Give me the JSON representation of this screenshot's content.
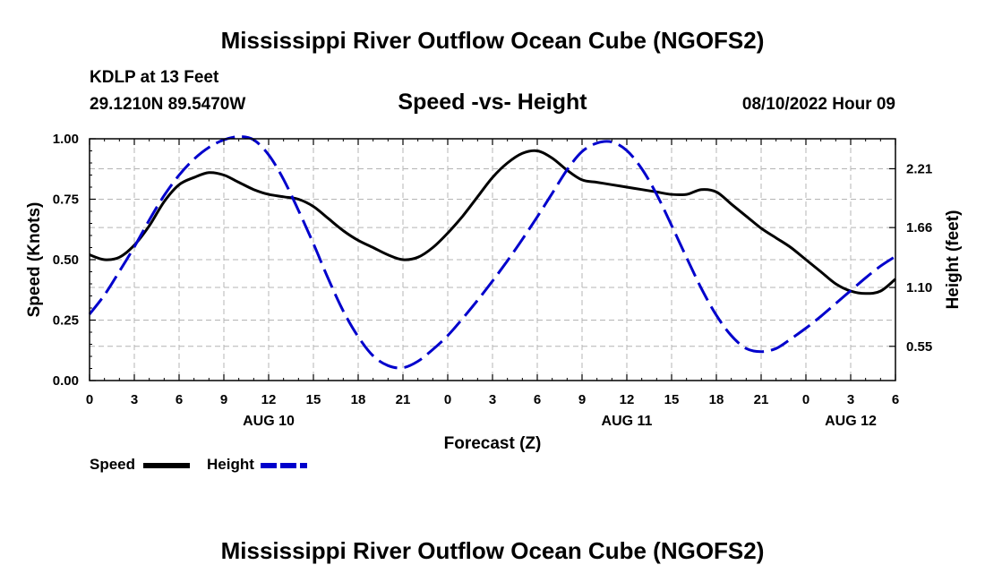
{
  "header": {
    "title": "Mississippi River Outflow Ocean Cube (NGOFS2)",
    "station": "KDLP at 13 Feet",
    "coords": "29.1210N  89.5470W",
    "subtitle": "Speed -vs- Height",
    "datetime": "08/10/2022 Hour 09"
  },
  "footer": {
    "title": "Mississippi River Outflow Ocean Cube (NGOFS2)"
  },
  "legend": {
    "speed": "Speed",
    "height": "Height"
  },
  "colors": {
    "speed": "#000000",
    "height": "#0000cc",
    "grid": "#b4b4b4"
  },
  "chart_data": {
    "type": "line",
    "title": "Speed -vs- Height",
    "xlabel": "Forecast (Z)",
    "ylabel": "Speed (Knots)",
    "y2label": "Height (feet)",
    "xlim": [
      0,
      54
    ],
    "ylim": [
      0,
      1.0
    ],
    "y2lim": [
      0.23,
      2.49
    ],
    "x_ticks": [
      0,
      3,
      6,
      9,
      12,
      15,
      18,
      21,
      24,
      27,
      30,
      33,
      36,
      39,
      42,
      45,
      48,
      51,
      54
    ],
    "x_tick_labels": [
      "0",
      "3",
      "6",
      "9",
      "12",
      "15",
      "18",
      "21",
      "0",
      "3",
      "6",
      "9",
      "12",
      "15",
      "18",
      "21",
      "0",
      "3",
      "6"
    ],
    "date_labels": [
      {
        "x": 12,
        "label": "AUG 10"
      },
      {
        "x": 36,
        "label": "AUG 11"
      },
      {
        "x": 51,
        "label": "AUG 12"
      }
    ],
    "y_ticks": [
      0,
      0.25,
      0.5,
      0.75,
      1.0
    ],
    "y_tick_labels": [
      "0.00",
      "0.25",
      "0.50",
      "0.75",
      "1.00"
    ],
    "y2_ticks": [
      0.55,
      1.1,
      1.66,
      2.21
    ],
    "y2_tick_labels": [
      "0.55",
      "1.10",
      "1.66",
      "2.21"
    ],
    "series": [
      {
        "name": "Speed",
        "axis": "left",
        "style": "solid",
        "x": [
          0,
          1,
          2,
          3,
          4,
          5,
          6,
          7,
          8,
          9,
          10,
          11,
          12,
          13,
          14,
          15,
          16,
          17,
          18,
          19,
          20,
          21,
          22,
          23,
          24,
          25,
          26,
          27,
          28,
          29,
          30,
          31,
          32,
          33,
          34,
          35,
          36,
          37,
          38,
          39,
          40,
          41,
          42,
          43,
          44,
          45,
          46,
          47,
          48,
          49,
          50,
          51,
          52,
          53,
          54
        ],
        "values": [
          0.52,
          0.5,
          0.51,
          0.56,
          0.64,
          0.74,
          0.81,
          0.84,
          0.86,
          0.85,
          0.82,
          0.79,
          0.77,
          0.76,
          0.75,
          0.72,
          0.67,
          0.62,
          0.58,
          0.55,
          0.52,
          0.5,
          0.51,
          0.55,
          0.61,
          0.68,
          0.76,
          0.84,
          0.9,
          0.94,
          0.95,
          0.92,
          0.87,
          0.83,
          0.82,
          0.81,
          0.8,
          0.79,
          0.78,
          0.77,
          0.77,
          0.79,
          0.78,
          0.73,
          0.68,
          0.63,
          0.59,
          0.55,
          0.5,
          0.45,
          0.4,
          0.37,
          0.36,
          0.37,
          0.42
        ]
      },
      {
        "name": "Height",
        "axis": "right",
        "style": "dashed",
        "x": [
          0,
          1,
          2,
          3,
          4,
          5,
          6,
          7,
          8,
          9,
          10,
          11,
          12,
          13,
          14,
          15,
          16,
          17,
          18,
          19,
          20,
          21,
          22,
          23,
          24,
          25,
          26,
          27,
          28,
          29,
          30,
          31,
          32,
          33,
          34,
          35,
          36,
          37,
          38,
          39,
          40,
          41,
          42,
          43,
          44,
          45,
          46,
          47,
          48,
          49,
          50,
          51,
          52,
          53,
          54
        ],
        "values": [
          0.85,
          1.03,
          1.25,
          1.48,
          1.73,
          1.96,
          2.15,
          2.3,
          2.41,
          2.48,
          2.51,
          2.48,
          2.34,
          2.11,
          1.82,
          1.51,
          1.18,
          0.88,
          0.64,
          0.46,
          0.37,
          0.35,
          0.41,
          0.52,
          0.65,
          0.81,
          0.98,
          1.16,
          1.35,
          1.55,
          1.76,
          1.98,
          2.2,
          2.37,
          2.45,
          2.46,
          2.38,
          2.21,
          1.97,
          1.68,
          1.38,
          1.09,
          0.84,
          0.65,
          0.53,
          0.5,
          0.53,
          0.62,
          0.72,
          0.83,
          0.95,
          1.07,
          1.19,
          1.3,
          1.39
        ]
      }
    ]
  }
}
